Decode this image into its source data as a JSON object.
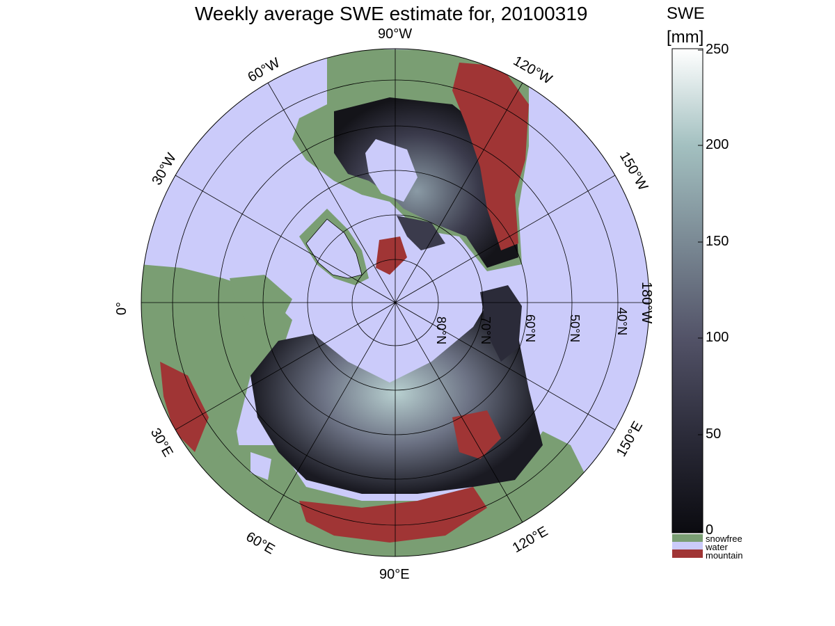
{
  "title": "Weekly average SWE estimate for, 20100319",
  "colorbar": {
    "title_line1": "SWE",
    "title_line2": "[mm]",
    "ticks": [
      "250",
      "200",
      "150",
      "100",
      "50",
      "0"
    ],
    "range": [
      0,
      250
    ],
    "gradient_colors": [
      "#0b0b10",
      "#2b2b39",
      "#525267",
      "#7a8994",
      "#a3c0c0",
      "#ffffff"
    ],
    "categories": [
      {
        "label": "snowfree",
        "color": "#7a9e73"
      },
      {
        "label": "water",
        "color": "#cbcbfa"
      },
      {
        "label": "mountain",
        "color": "#a03535"
      }
    ]
  },
  "longitude_labels": {
    "lon_90w": "90°W",
    "lon_60w": "60°W",
    "lon_30w": "30°W",
    "lon_0": "0°",
    "lon_30e": "30°E",
    "lon_60e": "60°E",
    "lon_90e": "90°E",
    "lon_120e": "120°E",
    "lon_150e": "150°E",
    "lon_180w": "180°W",
    "lon_150w": "150°W",
    "lon_120w": "120°W"
  },
  "latitude_labels": {
    "lat_80n": "80°N",
    "lat_70n": "70°N",
    "lat_60n": "60°N",
    "lat_50n": "50°N",
    "lat_40n": "40°N"
  },
  "map_colors": {
    "water": "#cbcbfa",
    "snowfree": "#7a9e73",
    "mountain": "#a03535",
    "snow_dark": "#1a1a22",
    "snow_mid": "#55556a",
    "snow_light": "#a8c4c4"
  }
}
